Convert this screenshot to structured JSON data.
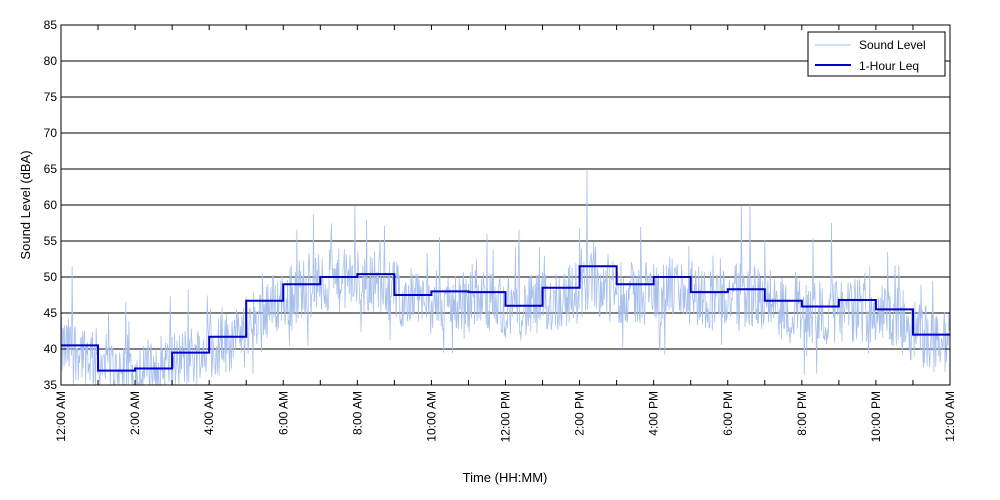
{
  "chart_data": {
    "type": "line",
    "xlabel": "Time (HH:MM)",
    "ylabel": "Sound Level (dBA)",
    "ylim": [
      35,
      85
    ],
    "yticks": [
      35,
      40,
      45,
      50,
      55,
      60,
      65,
      70,
      75,
      80,
      85
    ],
    "xlim_hours": [
      0,
      24
    ],
    "xticks": [
      {
        "hour": 0,
        "label": "12:00 AM"
      },
      {
        "hour": 2,
        "label": "2:00 AM"
      },
      {
        "hour": 4,
        "label": "4:00 AM"
      },
      {
        "hour": 6,
        "label": "6:00 AM"
      },
      {
        "hour": 8,
        "label": "8:00 AM"
      },
      {
        "hour": 10,
        "label": "10:00 AM"
      },
      {
        "hour": 12,
        "label": "12:00 PM"
      },
      {
        "hour": 14,
        "label": "2:00 PM"
      },
      {
        "hour": 16,
        "label": "4:00 PM"
      },
      {
        "hour": 18,
        "label": "6:00 PM"
      },
      {
        "hour": 20,
        "label": "8:00 PM"
      },
      {
        "hour": 22,
        "label": "10:00 PM"
      },
      {
        "hour": 24,
        "label": "12:00 AM"
      }
    ],
    "grid": "horizontal",
    "legend_position": "top-right",
    "series": [
      {
        "name": "Sound Level",
        "color": "#a8c0ec",
        "style": "thin noisy trace",
        "baseline_hourly": [
          40.0,
          36.8,
          37.2,
          39.0,
          41.0,
          45.5,
          48.5,
          49.5,
          49.5,
          46.5,
          46.5,
          46.5,
          45.5,
          47.0,
          49.0,
          47.5,
          48.5,
          47.0,
          47.5,
          46.0,
          45.0,
          45.5,
          44.5,
          41.0
        ],
        "peaks": [
          {
            "hour": 0.3,
            "value": 51.5
          },
          {
            "hour": 1.75,
            "value": 46.5
          },
          {
            "hour": 7.05,
            "value": 52.5
          },
          {
            "hour": 8.25,
            "value": 58.0
          },
          {
            "hour": 11.5,
            "value": 56.0
          },
          {
            "hour": 14.2,
            "value": 65.0
          },
          {
            "hour": 18.6,
            "value": 60.0
          },
          {
            "hour": 20.8,
            "value": 57.5
          }
        ]
      },
      {
        "name": "1-Hour Leq",
        "color": "#0000c8",
        "style": "step",
        "hourly_values": [
          40.5,
          37.0,
          37.3,
          39.5,
          41.7,
          46.7,
          49.0,
          50.0,
          50.4,
          47.5,
          48.0,
          47.9,
          46.0,
          48.5,
          51.5,
          49.0,
          50.0,
          47.9,
          48.3,
          46.7,
          45.9,
          46.8,
          45.5,
          42.0
        ]
      }
    ]
  }
}
